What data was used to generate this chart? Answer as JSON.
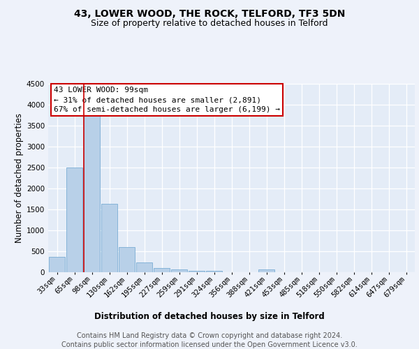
{
  "title": "43, LOWER WOOD, THE ROCK, TELFORD, TF3 5DN",
  "subtitle": "Size of property relative to detached houses in Telford",
  "xlabel": "Distribution of detached houses by size in Telford",
  "ylabel": "Number of detached properties",
  "footer_line1": "Contains HM Land Registry data © Crown copyright and database right 2024.",
  "footer_line2": "Contains public sector information licensed under the Open Government Licence v3.0.",
  "categories": [
    "33sqm",
    "65sqm",
    "98sqm",
    "130sqm",
    "162sqm",
    "195sqm",
    "227sqm",
    "259sqm",
    "291sqm",
    "324sqm",
    "356sqm",
    "388sqm",
    "421sqm",
    "453sqm",
    "485sqm",
    "518sqm",
    "550sqm",
    "582sqm",
    "614sqm",
    "647sqm",
    "679sqm"
  ],
  "values": [
    375,
    2500,
    3750,
    1640,
    600,
    240,
    105,
    60,
    40,
    35,
    0,
    0,
    60,
    0,
    0,
    0,
    0,
    0,
    0,
    0,
    0
  ],
  "bar_color": "#b8d0e8",
  "bar_edge_color": "#7aadd4",
  "highlight_line_color": "#cc0000",
  "annotation_text_line1": "43 LOWER WOOD: 99sqm",
  "annotation_text_line2": "← 31% of detached houses are smaller (2,891)",
  "annotation_text_line3": "67% of semi-detached houses are larger (6,199) →",
  "annotation_box_edgecolor": "#cc0000",
  "annotation_fill_color": "#ffffff",
  "ylim": [
    0,
    4500
  ],
  "background_color": "#eef2fa",
  "plot_background": "#e4ecf7",
  "grid_color": "#ffffff",
  "title_fontsize": 10,
  "subtitle_fontsize": 9,
  "axis_label_fontsize": 8.5,
  "tick_fontsize": 7.5,
  "annotation_fontsize": 8,
  "footer_fontsize": 7
}
